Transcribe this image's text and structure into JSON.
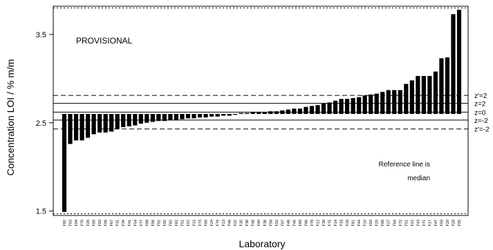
{
  "chart_data": {
    "type": "bar",
    "xlabel": "Laboratory",
    "ylabel": "Concentration LOI / % m/m",
    "ylim": [
      1.45,
      3.82
    ],
    "yticks": [
      {
        "value": 1.5,
        "label": "1.5"
      },
      {
        "value": 2.5,
        "label": "2.5"
      },
      {
        "value": 3.5,
        "label": "3.5"
      }
    ],
    "baseline": 2.6,
    "annotations": {
      "status": "PROVISIONAL",
      "reference_note_line1": "Reference line is",
      "reference_note_line2": "median"
    },
    "reference_lines": [
      {
        "label": "z'=2",
        "value": 2.81,
        "style": "dashed"
      },
      {
        "label": "z=2",
        "value": 2.72,
        "style": "solid"
      },
      {
        "label": "z=0",
        "value": 2.62,
        "style": "solid"
      },
      {
        "label": "z=-2",
        "value": 2.53,
        "style": "solid"
      },
      {
        "label": "z'=-2",
        "value": 2.43,
        "style": "dashed"
      },
      {
        "label": "",
        "value": 3.8,
        "style": "dotted"
      },
      {
        "label": "",
        "value": 1.47,
        "style": "dotted"
      }
    ],
    "categories": [
      "F82",
      "F03",
      "F04",
      "F70",
      "F26",
      "F09",
      "F50",
      "F08",
      "F67",
      "F31",
      "F34",
      "F41",
      "F54",
      "F77",
      "F89",
      "F56",
      "F01",
      "F02",
      "F62",
      "F61",
      "F51",
      "F57",
      "F15",
      "F73",
      "F80",
      "F24",
      "F79",
      "F13",
      "F46",
      "F22",
      "F35",
      "F38",
      "F48",
      "F40",
      "F36",
      "F58",
      "F52",
      "F07",
      "F49",
      "F45",
      "F69",
      "F66",
      "F78",
      "F12",
      "F30",
      "F75",
      "F14",
      "F18",
      "F33",
      "F81",
      "F44",
      "F19",
      "F83",
      "F20",
      "F06",
      "F27",
      "F64",
      "F72",
      "F51",
      "F21",
      "F43",
      "F71",
      "F17",
      "F47",
      "F59",
      "F29",
      "F28",
      "F55"
    ],
    "values": [
      1.49,
      2.26,
      2.3,
      2.3,
      2.33,
      2.37,
      2.39,
      2.39,
      2.4,
      2.43,
      2.45,
      2.46,
      2.47,
      2.49,
      2.5,
      2.51,
      2.52,
      2.52,
      2.53,
      2.53,
      2.54,
      2.55,
      2.55,
      2.56,
      2.56,
      2.57,
      2.57,
      2.58,
      2.58,
      2.59,
      2.61,
      2.61,
      2.62,
      2.62,
      2.62,
      2.63,
      2.63,
      2.64,
      2.65,
      2.66,
      2.66,
      2.68,
      2.69,
      2.7,
      2.72,
      2.73,
      2.75,
      2.77,
      2.77,
      2.78,
      2.79,
      2.81,
      2.82,
      2.83,
      2.85,
      2.87,
      2.87,
      2.87,
      2.94,
      2.98,
      3.03,
      3.03,
      3.03,
      3.08,
      3.23,
      3.24,
      3.73,
      3.78
    ]
  }
}
